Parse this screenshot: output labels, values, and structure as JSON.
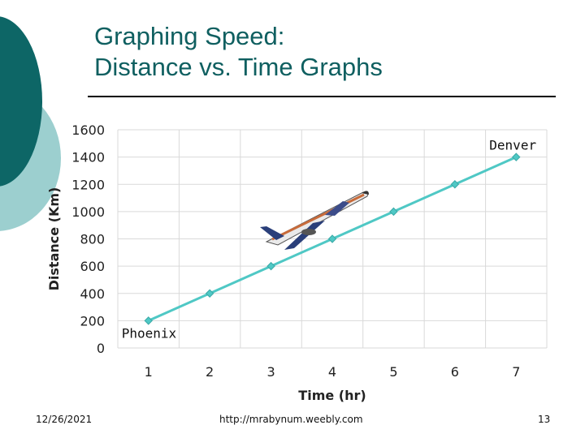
{
  "slide": {
    "title_line1": "Graphing Speed:",
    "title_line2": "Distance vs. Time Graphs",
    "footer_date": "12/26/2021",
    "footer_url": "http://mrabynum.weebly.com",
    "page_number": "13"
  },
  "colors": {
    "title": "#0f5f60",
    "deco_dark": "#0d6666",
    "deco_light": "#9ccfcf",
    "series_line": "#4fc8c5",
    "grid": "#d9d9d9"
  },
  "chart_data": {
    "type": "line",
    "title": "",
    "xlabel": "Time (hr)",
    "ylabel": "Distance (Km)",
    "x": [
      1,
      2,
      3,
      4,
      5,
      6,
      7
    ],
    "xticks": [
      1,
      2,
      3,
      4,
      5,
      6,
      7
    ],
    "yticks": [
      0,
      200,
      400,
      600,
      800,
      1000,
      1200,
      1400,
      1600
    ],
    "ylim": [
      0,
      1600
    ],
    "xlim": [
      0.5,
      7.5
    ],
    "grid": true,
    "series": [
      {
        "name": "Distance",
        "values": [
          200,
          400,
          600,
          800,
          1000,
          1200,
          1400
        ]
      }
    ],
    "annotations": [
      {
        "text": "Phoenix",
        "x": 1,
        "y": 200
      },
      {
        "text": "Denver",
        "x": 7,
        "y": 1400
      }
    ],
    "image_icon": "airplane-icon"
  }
}
